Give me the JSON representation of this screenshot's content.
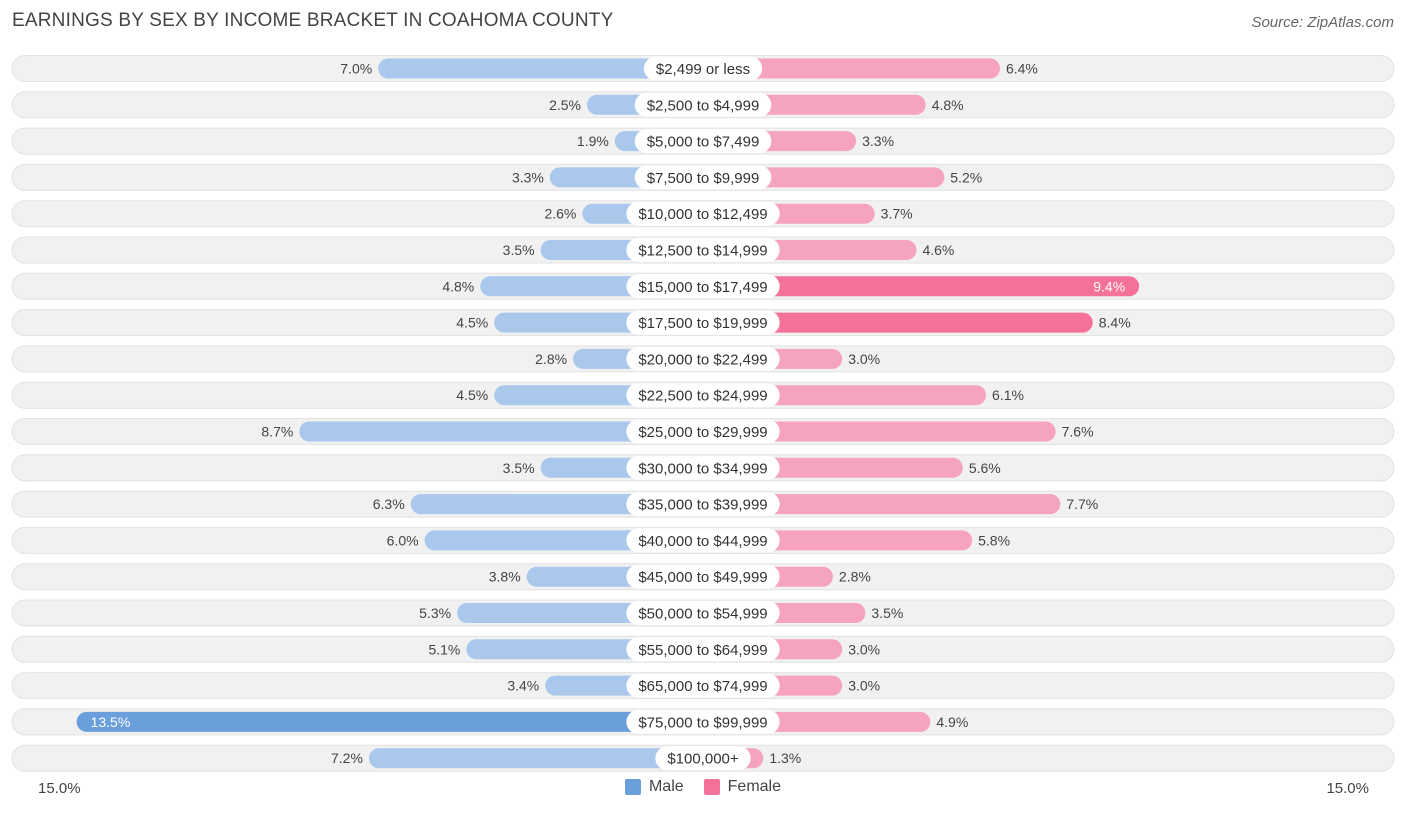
{
  "header": {
    "title": "EARNINGS BY SEX BY INCOME BRACKET IN COAHOMA COUNTY",
    "source": "Source: ZipAtlas.com"
  },
  "axis": {
    "left_label": "15.0%",
    "right_label": "15.0%"
  },
  "legend": {
    "male_label": "Male",
    "female_label": "Female"
  },
  "colors": {
    "male": "#6a9fdc",
    "male_light": "#a9c8ec",
    "female": "#f4719a",
    "female_light": "#f6a3bf",
    "row_bg": "#efefef"
  },
  "chart_data": {
    "type": "bar",
    "title": "EARNINGS BY SEX BY INCOME BRACKET IN COAHOMA COUNTY",
    "xlim": [
      -15,
      15
    ],
    "categories": [
      "$2,499 or less",
      "$2,500 to $4,999",
      "$5,000 to $7,499",
      "$7,500 to $9,999",
      "$10,000 to $12,499",
      "$12,500 to $14,999",
      "$15,000 to $17,499",
      "$17,500 to $19,999",
      "$20,000 to $22,499",
      "$22,500 to $24,999",
      "$25,000 to $29,999",
      "$30,000 to $34,999",
      "$35,000 to $39,999",
      "$40,000 to $44,999",
      "$45,000 to $49,999",
      "$50,000 to $54,999",
      "$55,000 to $64,999",
      "$65,000 to $74,999",
      "$75,000 to $99,999",
      "$100,000+"
    ],
    "series": [
      {
        "name": "Male",
        "values": [
          7.0,
          2.5,
          1.9,
          3.3,
          2.6,
          3.5,
          4.8,
          4.5,
          2.8,
          4.5,
          8.7,
          3.5,
          6.3,
          6.0,
          3.8,
          5.3,
          5.1,
          3.4,
          13.5,
          7.2
        ],
        "labels": [
          "7.0%",
          "2.5%",
          "1.9%",
          "3.3%",
          "2.6%",
          "3.5%",
          "4.8%",
          "4.5%",
          "2.8%",
          "4.5%",
          "8.7%",
          "3.5%",
          "6.3%",
          "6.0%",
          "3.8%",
          "5.3%",
          "5.1%",
          "3.4%",
          "13.5%",
          "7.2%"
        ]
      },
      {
        "name": "Female",
        "values": [
          6.4,
          4.8,
          3.3,
          5.2,
          3.7,
          4.6,
          9.4,
          8.4,
          3.0,
          6.1,
          7.6,
          5.6,
          7.7,
          5.8,
          2.8,
          3.5,
          3.0,
          3.0,
          4.9,
          1.3
        ],
        "labels": [
          "6.4%",
          "4.8%",
          "3.3%",
          "5.2%",
          "3.7%",
          "4.6%",
          "9.4%",
          "8.4%",
          "3.0%",
          "6.1%",
          "7.6%",
          "5.6%",
          "7.7%",
          "5.8%",
          "2.8%",
          "3.5%",
          "3.0%",
          "3.0%",
          "4.9%",
          "1.3%"
        ]
      }
    ]
  }
}
